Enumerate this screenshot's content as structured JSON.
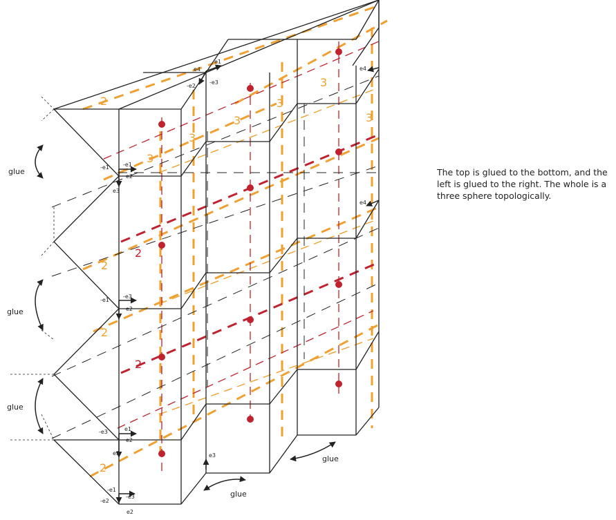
{
  "description": "The top is glued to the bottom, and the left is glued to the right.  The whole is a three sphere topologically.",
  "glue_label": "glue",
  "orange_labels": [
    "2",
    "2",
    "2",
    "2",
    "3",
    "3",
    "3",
    "3",
    "3"
  ],
  "red_labels": [
    "2",
    "2"
  ],
  "edge_labels": {
    "e1": "e1",
    "e2": "e2",
    "e3": "e3",
    "e4": "e4",
    "neg_e1": "-e1",
    "neg_e2": "-e2",
    "neg_e3": "-e3"
  },
  "colors": {
    "ink": "#222222",
    "orange": "#f0a030",
    "red": "#c0222e"
  }
}
